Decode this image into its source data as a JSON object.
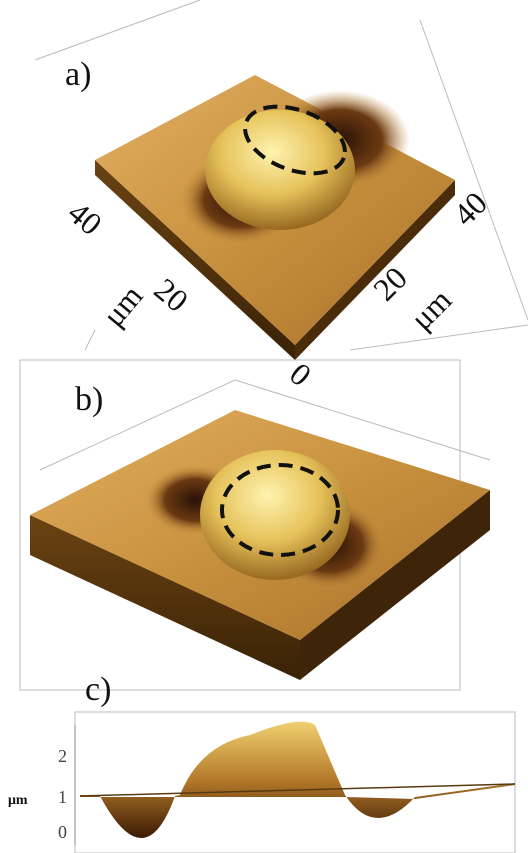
{
  "panel_a": {
    "label": "a)",
    "axis_labels": [
      "40",
      "μm",
      "20",
      "0",
      "20",
      "μm",
      "40"
    ]
  },
  "panel_b": {
    "label": "b)"
  },
  "panel_c": {
    "label": "c)",
    "axis_unit": "μm",
    "ticks": [
      "2",
      "1",
      "0"
    ]
  }
}
